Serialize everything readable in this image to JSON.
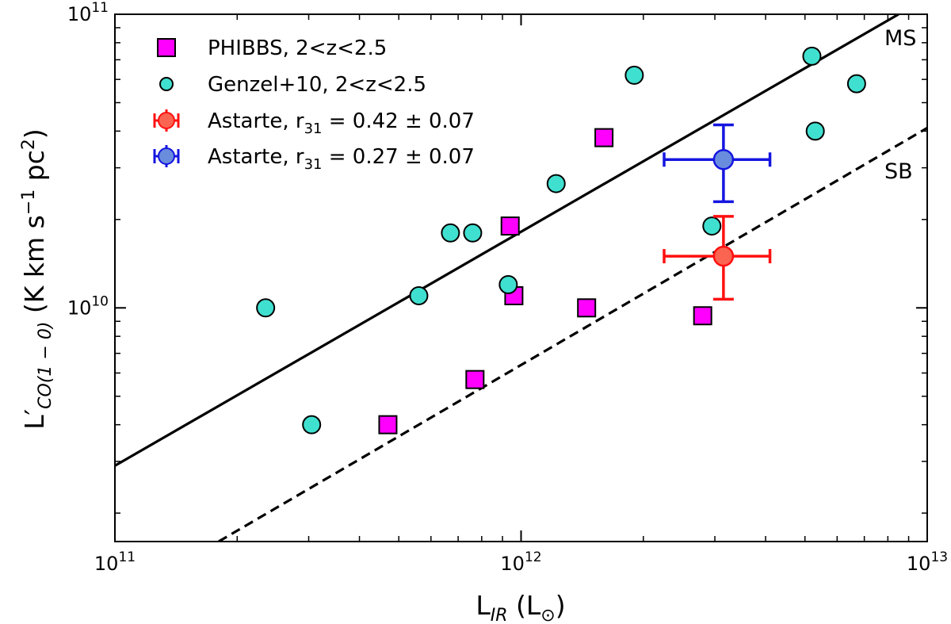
{
  "chart_data": {
    "type": "scatter",
    "xscale": "log",
    "yscale": "log",
    "xlim": [
      100000000000.0,
      10000000000000.0
    ],
    "ylim": [
      1600000000.0,
      100000000000.0
    ],
    "xlabel": {
      "main": "L",
      "sub": "IR",
      "unit": "(L",
      "unit_sub": "⊙",
      "close": ")"
    },
    "ylabel": {
      "main": "L′",
      "sub": "CO(1 − 0)",
      "unit": "(K km s",
      "sup1": "−1",
      "mid": " pc",
      "sup2": "2",
      "close": ")"
    },
    "xticks": [
      {
        "value": 100000000000.0,
        "base": "10",
        "exp": "11"
      },
      {
        "value": 1000000000000.0,
        "base": "10",
        "exp": "12"
      },
      {
        "value": 10000000000000.0,
        "base": "10",
        "exp": "13"
      }
    ],
    "yticks": [
      {
        "value": 10000000000.0,
        "base": "10",
        "exp": "10"
      },
      {
        "value": 100000000000.0,
        "base": "10",
        "exp": "11"
      }
    ],
    "lines": [
      {
        "name": "MS",
        "style": "solid",
        "x": [
          100000000000.0,
          8500000000000.0
        ],
        "y": [
          2900000000.0,
          100000000000.0
        ]
      },
      {
        "name": "SB",
        "style": "dashed",
        "x": [
          180000000000.0,
          10000000000000.0
        ],
        "y": [
          1600000000.0,
          41000000000.0
        ]
      }
    ],
    "series": [
      {
        "name": "PHIBBS, 2<z<2.5",
        "marker": "square",
        "color": "#ff00ff",
        "x": [
          470000000000.0,
          770000000000.0,
          940000000000.0,
          960000000000.0,
          1450000000000.0,
          1600000000000.0,
          2800000000000.0
        ],
        "y": [
          4000000000.0,
          5700000000.0,
          19000000000.0,
          11000000000.0,
          10000000000.0,
          38000000000.0,
          9400000000.0
        ]
      },
      {
        "name": "Genzel+10, 2<z<2.5",
        "marker": "circle",
        "color": "#40e0d0",
        "x": [
          235000000000.0,
          305000000000.0,
          560000000000.0,
          670000000000.0,
          760000000000.0,
          930000000000.0,
          1220000000000.0,
          1900000000000.0,
          2950000000000.0,
          5200000000000.0,
          5300000000000.0,
          6700000000000.0
        ],
        "y": [
          10000000000.0,
          4000000000.0,
          11000000000.0,
          18000000000.0,
          18000000000.0,
          12000000000.0,
          26500000000.0,
          62000000000.0,
          19000000000.0,
          72000000000.0,
          40000000000.0,
          58000000000.0
        ]
      },
      {
        "name": "Astarte, r31 = 0.42 ± 0.07",
        "marker": "errorbar-circle",
        "color": "#fa6450",
        "errcolor": "#ff1010",
        "label_parts": {
          "pre": "Astarte, r",
          "sub": "31",
          "post": " = 0.42 ± 0.07"
        },
        "x": [
          3150000000000.0
        ],
        "y": [
          15000000000.0
        ],
        "xerr_range": [
          [
            2250000000000.0,
            4100000000000.0
          ]
        ],
        "yerr_range": [
          [
            10700000000.0,
            20500000000.0
          ]
        ]
      },
      {
        "name": "Astarte, r31 = 0.27 ± 0.07",
        "marker": "errorbar-circle",
        "color": "#6a8cdd",
        "errcolor": "#1515e0",
        "label_parts": {
          "pre": "Astarte, r",
          "sub": "31",
          "post": " = 0.27 ± 0.07"
        },
        "x": [
          3150000000000.0
        ],
        "y": [
          32000000000.0
        ],
        "xerr_range": [
          [
            2250000000000.0,
            4100000000000.0
          ]
        ],
        "yerr_range": [
          [
            23000000000.0,
            42000000000.0
          ]
        ]
      }
    ],
    "legend": {
      "position": "top-left",
      "entries": [
        {
          "label": "PHIBBS, 2<z<2.5"
        },
        {
          "label": "Genzel+10, 2<z<2.5"
        },
        {
          "pre": "Astarte, r",
          "sub": "31",
          "post": " = 0.42 ± 0.07"
        },
        {
          "pre": "Astarte, r",
          "sub": "31",
          "post": " = 0.27 ± 0.07"
        }
      ]
    }
  }
}
